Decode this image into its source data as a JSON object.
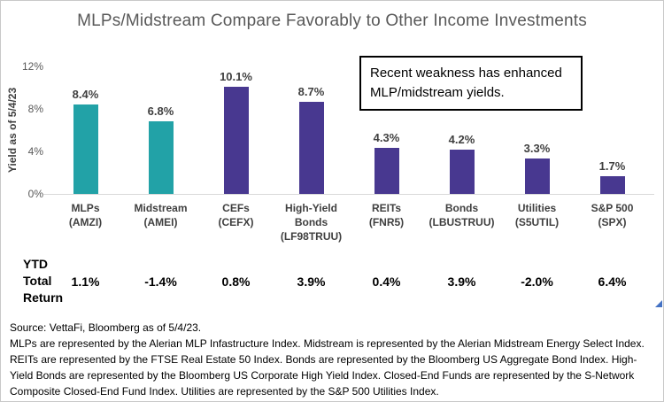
{
  "title": "MLPs/Midstream Compare Favorably to Other Income Investments",
  "annotation": {
    "line1": "Recent weakness has enhanced",
    "line2": "MLP/midstream yields."
  },
  "ytd": {
    "label_lines": [
      "YTD",
      "Total",
      "Return"
    ]
  },
  "footer": {
    "source": "Source: VettaFi, Bloomberg as of 5/4/23.",
    "disclosure": "MLPs are represented by the Alerian MLP Infastructure Index. Midstream is represented by the Alerian Midstream Energy Select Index. REITs are represented by the FTSE Real Estate 50 Index. Bonds are represented by the Bloomberg US Aggregate Bond Index. High-Yield Bonds are represented by the Bloomberg US Corporate High Yield Index. Closed-End Funds are represented by the S-Network Composite Closed-End Fund Index. Utilities are represented by the S&P 500 Utilities Index."
  },
  "chart_data": {
    "type": "bar",
    "title": "MLPs/Midstream Compare Favorably to Other Income Investments",
    "xlabel": "",
    "ylabel": "Yield as of 5/4/23",
    "ylim": [
      0,
      12
    ],
    "ytick_labels": [
      "12%",
      "8%",
      "4%",
      "0%"
    ],
    "grid": false,
    "legend": "none",
    "accent_colors": {
      "teal": "#22A2A7",
      "purple": "#483890"
    },
    "categories": [
      {
        "name_lines": [
          "MLPs",
          "(AMZI)"
        ],
        "value": 8.4,
        "value_label": "8.4%",
        "ytd_total_return": "1.1%",
        "color": "#22A2A7"
      },
      {
        "name_lines": [
          "Midstream",
          "(AMEI)"
        ],
        "value": 6.8,
        "value_label": "6.8%",
        "ytd_total_return": "-1.4%",
        "color": "#22A2A7"
      },
      {
        "name_lines": [
          "CEFs",
          "(CEFX)"
        ],
        "value": 10.1,
        "value_label": "10.1%",
        "ytd_total_return": "0.8%",
        "color": "#483890"
      },
      {
        "name_lines": [
          "High-Yield",
          "Bonds",
          "(LF98TRUU)"
        ],
        "value": 8.7,
        "value_label": "8.7%",
        "ytd_total_return": "3.9%",
        "color": "#483890"
      },
      {
        "name_lines": [
          "REITs",
          "(FNR5)"
        ],
        "value": 4.3,
        "value_label": "4.3%",
        "ytd_total_return": "0.4%",
        "color": "#483890"
      },
      {
        "name_lines": [
          "Bonds",
          "(LBUSTRUU)"
        ],
        "value": 4.2,
        "value_label": "4.2%",
        "ytd_total_return": "3.9%",
        "color": "#483890"
      },
      {
        "name_lines": [
          "Utilities",
          "(S5UTIL)"
        ],
        "value": 3.3,
        "value_label": "3.3%",
        "ytd_total_return": "-2.0%",
        "color": "#483890"
      },
      {
        "name_lines": [
          "S&P 500",
          "(SPX)"
        ],
        "value": 1.7,
        "value_label": "1.7%",
        "ytd_total_return": "6.4%",
        "color": "#483890"
      }
    ]
  }
}
